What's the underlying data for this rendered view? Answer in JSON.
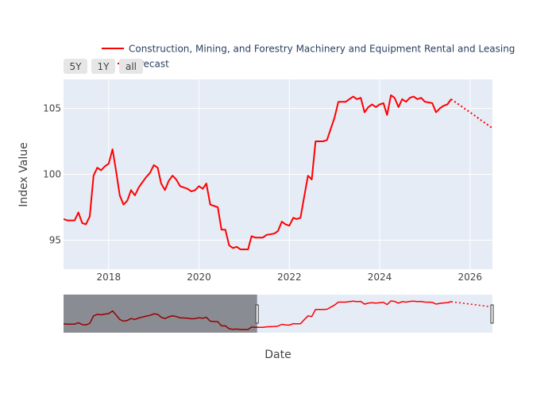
{
  "chart_data": {
    "type": "line",
    "title": "",
    "xlabel": "Date",
    "ylabel": "Index Value",
    "x_type": "date",
    "xlim": [
      "2017-01-01",
      "2026-07-01"
    ],
    "ylim": [
      92.8,
      107.2
    ],
    "x_ticks": [
      "2018",
      "2020",
      "2022",
      "2024",
      "2026"
    ],
    "y_ticks": [
      95,
      100,
      105
    ],
    "grid": true,
    "plot_background": "#e5ecf6",
    "legend_position": "top",
    "range_selector": [
      "5Y",
      "1Y",
      "all"
    ],
    "range_slider": true,
    "series": [
      {
        "name": "Construction, Mining, and Forestry Machinery and Equipment Rental and Leasing",
        "color": "#ff0000",
        "dash": "solid",
        "points": [
          [
            "2017-01",
            96.6
          ],
          [
            "2017-02",
            96.5
          ],
          [
            "2017-04",
            96.5
          ],
          [
            "2017-05",
            97.1
          ],
          [
            "2017-06",
            96.3
          ],
          [
            "2017-07",
            96.2
          ],
          [
            "2017-08",
            96.8
          ],
          [
            "2017-09",
            99.9
          ],
          [
            "2017-10",
            100.5
          ],
          [
            "2017-11",
            100.3
          ],
          [
            "2017-12",
            100.6
          ],
          [
            "2018-01",
            100.8
          ],
          [
            "2018-02",
            101.9
          ],
          [
            "2018-03",
            100.3
          ],
          [
            "2018-04",
            98.4
          ],
          [
            "2018-05",
            97.7
          ],
          [
            "2018-06",
            98.0
          ],
          [
            "2018-07",
            98.8
          ],
          [
            "2018-08",
            98.4
          ],
          [
            "2018-09",
            99.0
          ],
          [
            "2018-10",
            99.4
          ],
          [
            "2018-11",
            99.8
          ],
          [
            "2018-12",
            100.1
          ],
          [
            "2019-01",
            100.7
          ],
          [
            "2019-02",
            100.5
          ],
          [
            "2019-03",
            99.3
          ],
          [
            "2019-04",
            98.8
          ],
          [
            "2019-05",
            99.5
          ],
          [
            "2019-06",
            99.9
          ],
          [
            "2019-07",
            99.6
          ],
          [
            "2019-08",
            99.1
          ],
          [
            "2019-10",
            98.9
          ],
          [
            "2019-11",
            98.7
          ],
          [
            "2019-12",
            98.8
          ],
          [
            "2020-01",
            99.1
          ],
          [
            "2020-02",
            98.9
          ],
          [
            "2020-03",
            99.3
          ],
          [
            "2020-04",
            97.7
          ],
          [
            "2020-06",
            97.5
          ],
          [
            "2020-07",
            95.8
          ],
          [
            "2020-08",
            95.8
          ],
          [
            "2020-09",
            94.6
          ],
          [
            "2020-10",
            94.4
          ],
          [
            "2020-11",
            94.5
          ],
          [
            "2020-12",
            94.3
          ],
          [
            "2021-02",
            94.3
          ],
          [
            "2021-03",
            95.3
          ],
          [
            "2021-04",
            95.2
          ],
          [
            "2021-06",
            95.2
          ],
          [
            "2021-07",
            95.4
          ],
          [
            "2021-09",
            95.5
          ],
          [
            "2021-10",
            95.7
          ],
          [
            "2021-11",
            96.4
          ],
          [
            "2021-12",
            96.2
          ],
          [
            "2022-01",
            96.1
          ],
          [
            "2022-02",
            96.7
          ],
          [
            "2022-03",
            96.6
          ],
          [
            "2022-04",
            96.7
          ],
          [
            "2022-05",
            98.3
          ],
          [
            "2022-06",
            99.9
          ],
          [
            "2022-07",
            99.6
          ],
          [
            "2022-08",
            102.5
          ],
          [
            "2022-10",
            102.5
          ],
          [
            "2022-11",
            102.6
          ],
          [
            "2023-01",
            104.3
          ],
          [
            "2023-02",
            105.5
          ],
          [
            "2023-04",
            105.5
          ],
          [
            "2023-05",
            105.7
          ],
          [
            "2023-06",
            105.9
          ],
          [
            "2023-07",
            105.7
          ],
          [
            "2023-08",
            105.8
          ],
          [
            "2023-09",
            104.7
          ],
          [
            "2023-10",
            105.1
          ],
          [
            "2023-11",
            105.3
          ],
          [
            "2023-12",
            105.1
          ],
          [
            "2024-01",
            105.3
          ],
          [
            "2024-02",
            105.4
          ],
          [
            "2024-03",
            104.5
          ],
          [
            "2024-04",
            106.0
          ],
          [
            "2024-05",
            105.8
          ],
          [
            "2024-06",
            105.1
          ],
          [
            "2024-07",
            105.7
          ],
          [
            "2024-08",
            105.5
          ],
          [
            "2024-09",
            105.8
          ],
          [
            "2024-10",
            105.9
          ],
          [
            "2024-11",
            105.7
          ],
          [
            "2024-12",
            105.8
          ],
          [
            "2025-01",
            105.5
          ],
          [
            "2025-03",
            105.4
          ],
          [
            "2025-04",
            104.7
          ],
          [
            "2025-05",
            105.0
          ],
          [
            "2025-06",
            105.2
          ],
          [
            "2025-07",
            105.3
          ],
          [
            "2025-08",
            105.7
          ]
        ]
      },
      {
        "name": "Forecast",
        "color": "#ff0000",
        "dash": "dot",
        "points": [
          [
            "2025-08",
            105.7
          ],
          [
            "2025-10",
            105.3
          ],
          [
            "2025-12",
            104.9
          ],
          [
            "2026-02",
            104.5
          ],
          [
            "2026-04",
            104.1
          ],
          [
            "2026-06",
            103.7
          ],
          [
            "2026-07",
            103.5
          ]
        ]
      }
    ]
  }
}
